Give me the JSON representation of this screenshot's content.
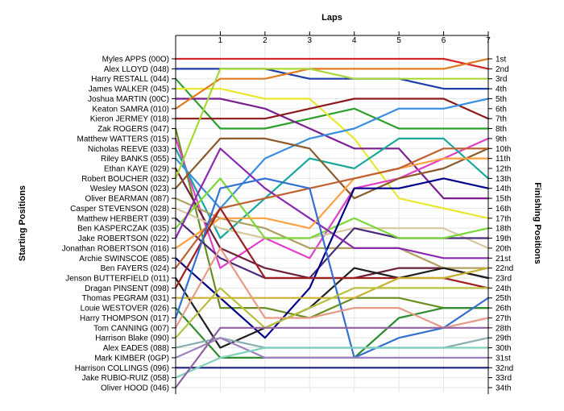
{
  "chart_data": {
    "type": "line",
    "title": "",
    "xlabel": "Laps",
    "ylabel_left": "Starting Positions",
    "ylabel_right": "Finishing Positions",
    "x": [
      0,
      1,
      2,
      3,
      4,
      5,
      6,
      7
    ],
    "x_tick_labels": [
      "1",
      "2",
      "3",
      "4",
      "5",
      "6",
      "7"
    ],
    "xlim": [
      0,
      7
    ],
    "ylim": [
      1,
      34
    ],
    "y_inverted": true,
    "grid": true,
    "starting_labels": [
      "Myles APPS (00O)",
      "Alex LLOYD (048)",
      "Harry RESTALL (044)",
      "James WALKER (045)",
      "Joshua MARTIN (00C)",
      "Keaton SAMRA (010)",
      "Kieron JERMEY (018)",
      "Zak ROGERS (047)",
      "Matthew WATTERS (015)",
      "Nicholas REEVE (033)",
      "Riley BANKS (055)",
      "Ethan KAYE (029)",
      "Robert BOUCHER (032)",
      "Wesley MASON (023)",
      "Oliver BEARMAN (087)",
      "Casper STEVENSON (028)",
      "Matthew HERBERT (039)",
      "Ben KASPERCZAK (035)",
      "Jake ROBERTSON (022)",
      "Jonathan ROBERTSON (016)",
      "Archie SWINSCOE (085)",
      "Ben FAYERS (024)",
      "Jenson BUTTERFIELD (011)",
      "Dragan PINSENT (098)",
      "Thomas PEGRAM (031)",
      "Louie WESTOVER (026)",
      "Harry THOMPSON (017)",
      "Tom CANNING (007)",
      "Harrison Blake (090)",
      "Alex EADES (088)",
      "Mark KIMBER (0GP)",
      "Harrison COLLINGS (096)",
      "Jake RUBIO-RUIZ (058)",
      "Oliver HOOD (046)"
    ],
    "finishing_labels": [
      "1st",
      "2nd",
      "3rd",
      "4th",
      "5th",
      "6th",
      "7th",
      "8th",
      "9th",
      "10th",
      "11th",
      "12th",
      "13th",
      "14th",
      "15th",
      "16th",
      "17th",
      "18th",
      "19th",
      "20th",
      "21st",
      "22nd",
      "23rd",
      "24th",
      "25th",
      "26th",
      "27th",
      "28th",
      "29th",
      "30th",
      "31st",
      "32nd",
      "33rd",
      "34th"
    ],
    "series": [
      {
        "color": "#d62728",
        "values": [
          1,
          1,
          1,
          1,
          1,
          1,
          1,
          2
        ]
      },
      {
        "color": "#1f3fa8",
        "values": [
          2,
          2,
          2,
          3,
          3,
          3,
          4,
          4
        ]
      },
      {
        "color": "#2ca02c",
        "values": [
          3,
          8,
          8,
          7,
          6,
          8,
          8,
          8
        ]
      },
      {
        "color": "#e8e830",
        "values": [
          4,
          4,
          5,
          5,
          9,
          15,
          16,
          17
        ]
      },
      {
        "color": "#7a1f8f",
        "values": [
          5,
          5,
          6,
          8,
          10,
          10,
          15,
          15
        ]
      },
      {
        "color": "#e07b22",
        "values": [
          6,
          3,
          3,
          2,
          2,
          2,
          2,
          1
        ]
      },
      {
        "color": "#8b1a1a",
        "values": [
          7,
          7,
          7,
          6,
          5,
          5,
          5,
          7
        ]
      },
      {
        "color": "#6a8f20",
        "values": [
          8,
          26,
          26,
          27,
          25,
          25,
          26,
          26
        ]
      },
      {
        "color": "#e040c8",
        "values": [
          9,
          22,
          19,
          21,
          14,
          13,
          11,
          9
        ]
      },
      {
        "color": "#1aa89c",
        "values": [
          10,
          19,
          15,
          11,
          12,
          9,
          9,
          13
        ]
      },
      {
        "color": "#3a8ee0",
        "values": [
          11,
          16,
          11,
          9,
          8,
          6,
          6,
          5
        ]
      },
      {
        "color": "#6b1f3a",
        "values": [
          12,
          20,
          22,
          23,
          23,
          22,
          22,
          23
        ]
      },
      {
        "color": "#a8d838",
        "values": [
          13,
          2,
          2,
          2,
          3,
          3,
          3,
          3
        ]
      },
      {
        "color": "#8c5a2a",
        "values": [
          14,
          9,
          9,
          10,
          15,
          13,
          12,
          10
        ]
      },
      {
        "color": "#b0a060",
        "values": [
          15,
          17,
          18,
          20,
          20,
          20,
          22,
          22
        ]
      },
      {
        "color": "#d7c8a0",
        "values": [
          16,
          18,
          19,
          19,
          18,
          18,
          18,
          20
        ]
      },
      {
        "color": "#4a2a7a",
        "values": [
          17,
          21,
          23,
          23,
          18,
          19,
          19,
          19
        ]
      },
      {
        "color": "#7ad83a",
        "values": [
          18,
          13,
          19,
          19,
          17,
          19,
          19,
          18
        ]
      },
      {
        "color": "#8a2ab0",
        "values": [
          19,
          10,
          14,
          17,
          20,
          20,
          21,
          21
        ]
      },
      {
        "color": "#ffa040",
        "values": [
          20,
          17,
          17,
          18,
          13,
          12,
          11,
          11
        ]
      },
      {
        "color": "#00008b",
        "values": [
          21,
          25,
          29,
          24,
          14,
          14,
          13,
          14
        ]
      },
      {
        "color": "#c06030",
        "values": [
          22,
          16,
          15,
          14,
          13,
          12,
          10,
          10
        ]
      },
      {
        "color": "#202020",
        "values": [
          23,
          30,
          28,
          26,
          22,
          23,
          22,
          23
        ]
      },
      {
        "color": "#a02020",
        "values": [
          24,
          16,
          23,
          23,
          23,
          23,
          23,
          24
        ]
      },
      {
        "color": "#c8b030",
        "values": [
          25,
          25,
          25,
          25,
          25,
          23,
          23,
          22
        ]
      },
      {
        "color": "#2e8b2e",
        "values": [
          26,
          31,
          31,
          31,
          31,
          27,
          26,
          26
        ]
      },
      {
        "color": "#3370d0",
        "values": [
          27,
          14,
          13,
          14,
          31,
          29,
          28,
          25
        ]
      },
      {
        "color": "#e89a88",
        "values": [
          28,
          20,
          27,
          27,
          26,
          26,
          28,
          27
        ]
      },
      {
        "color": "#b8c040",
        "values": [
          29,
          24,
          28,
          26,
          24,
          24,
          24,
          24
        ]
      },
      {
        "color": "#88b0b0",
        "values": [
          30,
          29,
          30,
          30,
          30,
          30,
          30,
          29
        ]
      },
      {
        "color": "#a080c0",
        "values": [
          31,
          29,
          31,
          31,
          31,
          31,
          31,
          31
        ]
      },
      {
        "color": "#1a237e",
        "values": [
          32,
          32,
          32,
          32,
          32,
          32,
          32,
          32
        ]
      },
      {
        "color": "#80d0c0",
        "values": [
          33,
          31,
          30,
          30,
          30,
          30,
          30,
          30
        ]
      },
      {
        "color": "#9060a0",
        "values": [
          34,
          28,
          28,
          28,
          28,
          28,
          28,
          28
        ]
      }
    ]
  }
}
